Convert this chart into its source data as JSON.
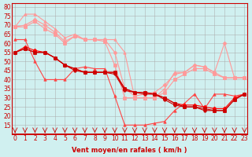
{
  "x": [
    0,
    1,
    2,
    3,
    4,
    5,
    6,
    7,
    8,
    9,
    10,
    11,
    12,
    13,
    14,
    15,
    16,
    17,
    18,
    19,
    20,
    21,
    22,
    23
  ],
  "series": [
    {
      "color": "#ff9999",
      "marker": "^",
      "values": [
        69,
        76,
        76,
        72,
        68,
        63,
        65,
        62,
        62,
        62,
        62,
        55,
        30,
        30,
        30,
        35,
        44,
        44,
        48,
        47,
        44,
        41,
        41,
        41
      ]
    },
    {
      "color": "#ff9999",
      "marker": "D",
      "values": [
        69,
        70,
        73,
        70,
        66,
        61,
        64,
        62,
        62,
        62,
        55,
        35,
        31,
        32,
        33,
        37,
        43,
        44,
        48,
        47,
        44,
        60,
        41,
        41
      ]
    },
    {
      "color": "#ff9999",
      "marker": "s",
      "values": [
        69,
        69,
        72,
        68,
        65,
        60,
        64,
        62,
        62,
        61,
        48,
        30,
        30,
        30,
        30,
        33,
        40,
        43,
        46,
        46,
        43,
        41,
        41,
        41
      ]
    },
    {
      "color": "#ff4444",
      "marker": "^",
      "values": [
        62,
        62,
        50,
        40,
        40,
        40,
        46,
        47,
        46,
        46,
        31,
        15,
        15,
        15,
        16,
        17,
        23,
        27,
        32,
        24,
        32,
        32,
        31,
        32
      ]
    },
    {
      "color": "#ff0000",
      "marker": "D",
      "values": [
        55,
        58,
        56,
        55,
        52,
        48,
        46,
        44,
        44,
        44,
        44,
        35,
        33,
        33,
        32,
        30,
        27,
        26,
        26,
        25,
        24,
        24,
        30,
        32
      ]
    },
    {
      "color": "#cc0000",
      "marker": "s",
      "values": [
        55,
        57,
        55,
        55,
        52,
        48,
        46,
        44,
        44,
        44,
        44,
        35,
        33,
        33,
        32,
        30,
        27,
        25,
        25,
        24,
        23,
        23,
        29,
        32
      ]
    },
    {
      "color": "#cc0000",
      "marker": "o",
      "values": [
        55,
        57,
        55,
        55,
        52,
        48,
        45,
        44,
        44,
        44,
        43,
        34,
        33,
        32,
        32,
        29,
        26,
        25,
        25,
        23,
        23,
        23,
        29,
        32
      ]
    }
  ],
  "xlabel": "Vent moyen/en rafales ( km/h )",
  "ylabel": "",
  "xlim": [
    0,
    23
  ],
  "ylim": [
    10,
    82
  ],
  "yticks": [
    15,
    20,
    25,
    30,
    35,
    40,
    45,
    50,
    55,
    60,
    65,
    70,
    75,
    80
  ],
  "xticks": [
    0,
    1,
    2,
    3,
    4,
    5,
    6,
    7,
    8,
    9,
    10,
    11,
    12,
    13,
    14,
    15,
    16,
    17,
    18,
    19,
    20,
    21,
    22,
    23
  ],
  "bg_color": "#d0f0f0",
  "grid_color": "#aaaaaa",
  "arrow_color": "#cc0000",
  "title_color": "#cc0000",
  "xlabel_color": "#cc0000"
}
